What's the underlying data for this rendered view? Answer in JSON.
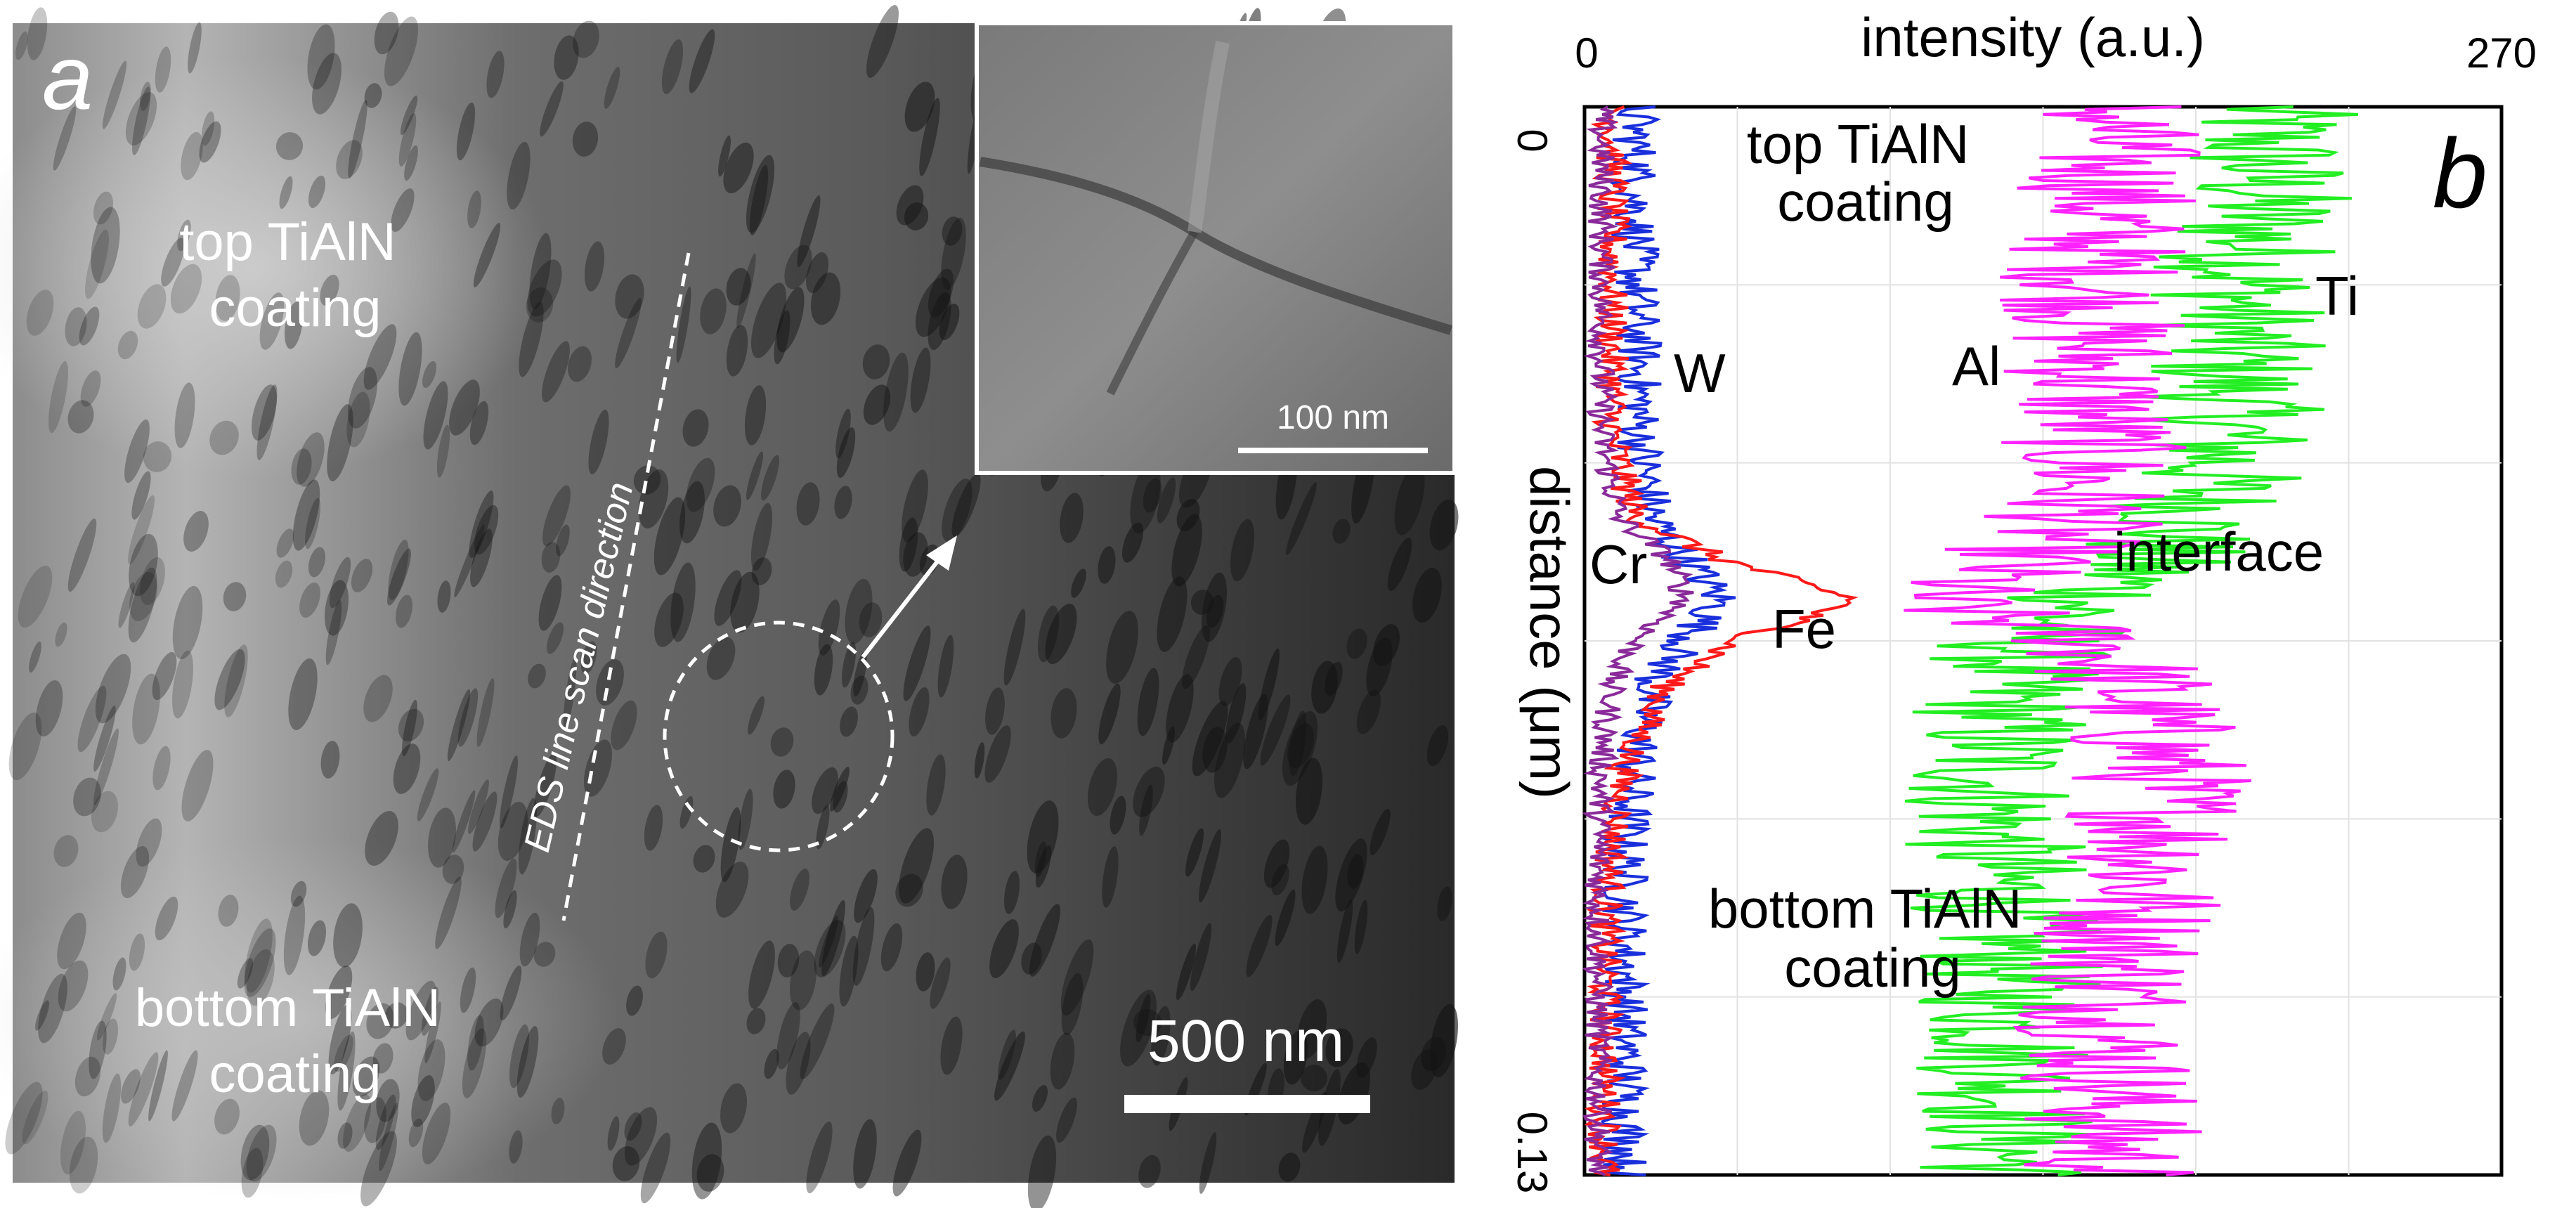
{
  "panel_a": {
    "label": "a",
    "top_label": [
      "top TiAlN",
      "coating"
    ],
    "bottom_label": [
      "bottom TiAlN",
      "coating"
    ],
    "scan_label": "EDS line scan direction",
    "scale_bar": "500 nm",
    "inset_scale_bar": "100 nm"
  },
  "panel_b": {
    "label": "b",
    "xlabel": "intensity (a.u.)",
    "ylabel": "distance (μm)",
    "x_tick_left": "0",
    "x_tick_right": "270",
    "y_tick_top": "0",
    "y_tick_bottom": "0.13",
    "top_label": [
      "top TiAlN",
      "coating"
    ],
    "bottom_label": [
      "bottom TiAlN",
      "coating"
    ],
    "interface_label": "interface",
    "element_labels": {
      "W": "W",
      "Al": "Al",
      "Ti": "Ti",
      "Cr": "Cr",
      "Fe": "Fe"
    }
  },
  "chart_data": {
    "type": "line",
    "orientation": "intensity on x axis (top), distance on y axis (downward)",
    "xlabel": "intensity (a.u.)",
    "ylabel": "distance (μm)",
    "xlim": [
      0,
      270
    ],
    "ylim": [
      0,
      0.13
    ],
    "grid": true,
    "y_positions": [
      0,
      0.01,
      0.02,
      0.03,
      0.04,
      0.05,
      0.055,
      0.06,
      0.065,
      0.07,
      0.08,
      0.09,
      0.1,
      0.11,
      0.12,
      0.13
    ],
    "series": [
      {
        "name": "Ti",
        "color": "#22ee22",
        "x": [
          200,
          200,
          195,
          190,
          190,
          180,
          165,
          150,
          130,
          125,
          120,
          120,
          125,
          125,
          125,
          125
        ]
      },
      {
        "name": "Al",
        "color": "#ff22ff",
        "x": [
          155,
          155,
          150,
          150,
          150,
          145,
          130,
          100,
          150,
          160,
          170,
          170,
          160,
          155,
          155,
          155
        ]
      },
      {
        "name": "W",
        "color": "#1a2fdc",
        "x": [
          15,
          15,
          15,
          16,
          16,
          20,
          30,
          40,
          30,
          20,
          15,
          12,
          12,
          12,
          12,
          12
        ]
      },
      {
        "name": "Fe",
        "color": "#ff1a1a",
        "x": [
          8,
          8,
          8,
          8,
          8,
          15,
          40,
          80,
          45,
          25,
          12,
          8,
          6,
          6,
          6,
          6
        ]
      },
      {
        "name": "Cr",
        "color": "#8a2a9a",
        "x": [
          5,
          5,
          5,
          5,
          5,
          10,
          25,
          30,
          15,
          8,
          5,
          4,
          4,
          4,
          4,
          4
        ]
      }
    ]
  }
}
